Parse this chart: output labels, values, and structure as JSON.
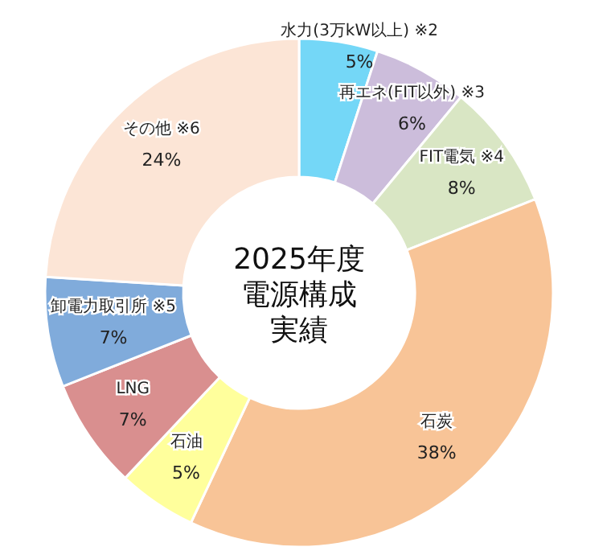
{
  "chart_data": {
    "type": "donut",
    "title": "2025年度電源構成実績",
    "categories": [
      "水力(3万kW以上) ※2",
      "再エネ(FIT以外) ※3",
      "FIT電気 ※4",
      "石炭",
      "石油",
      "LNG",
      "卸電力取引所 ※5",
      "その他 ※6"
    ],
    "values": [
      5,
      6,
      8,
      38,
      5,
      7,
      7,
      24
    ],
    "value_labels": [
      "5%",
      "6%",
      "8%",
      "38%",
      "5%",
      "7%",
      "7%",
      "24%"
    ],
    "colors": [
      "#74d7f7",
      "#ccbddb",
      "#d9e6c4",
      "#f8c497",
      "#ffff9c",
      "#d98f8f",
      "#80abdb",
      "#fce5d6"
    ]
  }
}
